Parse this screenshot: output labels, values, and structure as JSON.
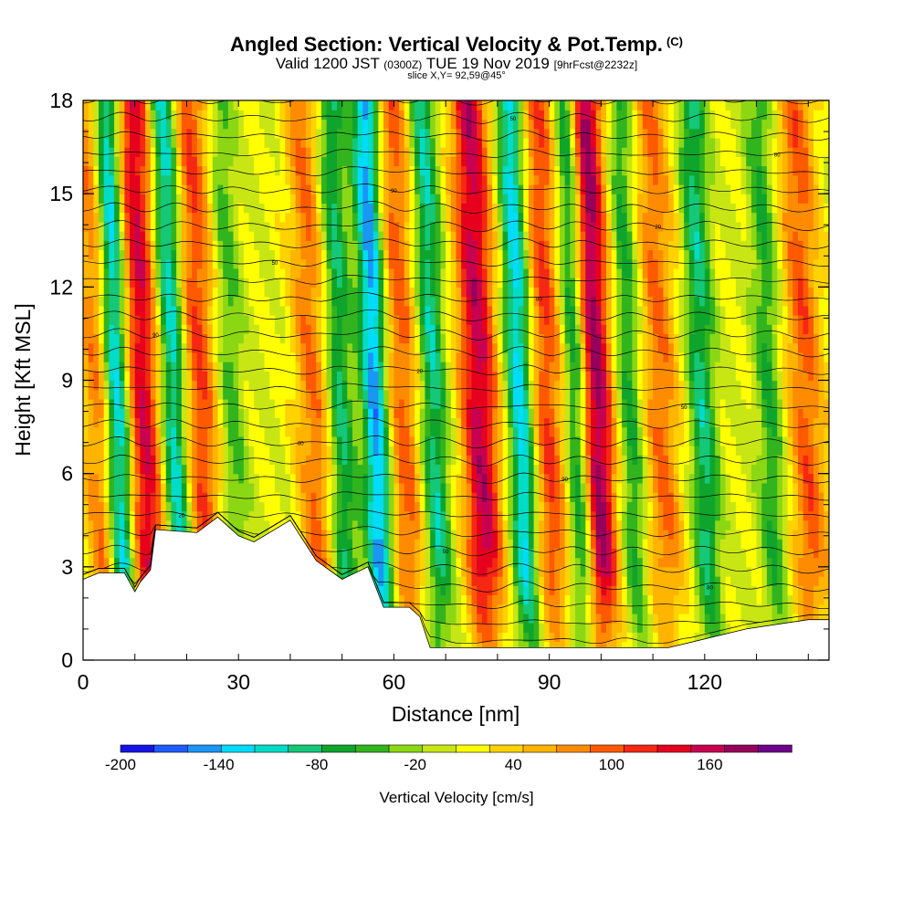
{
  "header": {
    "title": "Angled Section: Vertical Velocity & Pot.Temp.",
    "title_unit": "(C)",
    "valid_prefix": "Valid 1200 JST",
    "valid_utc": "(0300Z)",
    "valid_date": "TUE 19 Nov 2019",
    "forecast": "[9hrFcst@2232z]",
    "slice": "slice X,Y= 92,59@45°"
  },
  "chart_data": {
    "type": "heatmap",
    "title": "Angled Section: Vertical Velocity & Pot.Temp.",
    "xlabel": "Distance [nm]",
    "ylabel": "Height [Kft MSL]",
    "xlim": [
      0,
      144
    ],
    "ylim": [
      0,
      18
    ],
    "xticks": [
      0,
      30,
      60,
      90,
      120
    ],
    "yticks": [
      0,
      3,
      6,
      9,
      12,
      15,
      18
    ],
    "colorbar": {
      "label": "Vertical Velocity [cm/s]",
      "tick_labels": [
        -200,
        -140,
        -80,
        -20,
        40,
        100,
        160
      ],
      "min": -200,
      "max": 190,
      "step": 20,
      "colors": [
        "#1414e6",
        "#1e5cff",
        "#1a96f5",
        "#00dcfa",
        "#00dcc8",
        "#14c878",
        "#0fa52d",
        "#32b41e",
        "#8cd714",
        "#c8e614",
        "#ffff00",
        "#ffd200",
        "#ffb400",
        "#ff8c00",
        "#ff5a00",
        "#f52814",
        "#e6001e",
        "#c80050",
        "#96005a",
        "#6e008c"
      ]
    },
    "updrafts": [
      {
        "x": 4,
        "w": 90
      },
      {
        "x": 12,
        "w": 140
      },
      {
        "x": 23,
        "w": 100
      },
      {
        "x": 45,
        "w": 80
      },
      {
        "x": 62,
        "w": 90
      },
      {
        "x": 77,
        "w": 150
      },
      {
        "x": 90,
        "w": 100
      },
      {
        "x": 99,
        "w": 190
      },
      {
        "x": 112,
        "w": 80
      },
      {
        "x": 140,
        "w": 90
      }
    ],
    "downdrafts": [
      {
        "x": 7,
        "w": -180
      },
      {
        "x": 18,
        "w": -130
      },
      {
        "x": 29,
        "w": -50
      },
      {
        "x": 50,
        "w": -90
      },
      {
        "x": 57,
        "w": -160
      },
      {
        "x": 68,
        "w": -100
      },
      {
        "x": 85,
        "w": -140
      },
      {
        "x": 96,
        "w": -150
      },
      {
        "x": 106,
        "w": -70
      },
      {
        "x": 120,
        "w": -90
      },
      {
        "x": 133,
        "w": -60
      }
    ],
    "terrain_height": [
      [
        0,
        2.6
      ],
      [
        3,
        2.8
      ],
      [
        8,
        2.8
      ],
      [
        10,
        2.2
      ],
      [
        11,
        2.5
      ],
      [
        13,
        2.9
      ],
      [
        14,
        4.2
      ],
      [
        22,
        4.1
      ],
      [
        26,
        4.6
      ],
      [
        30,
        4.0
      ],
      [
        33,
        3.8
      ],
      [
        40,
        4.5
      ],
      [
        45,
        3.2
      ],
      [
        50,
        2.6
      ],
      [
        55,
        3.0
      ],
      [
        58,
        1.7
      ],
      [
        63,
        1.7
      ],
      [
        65,
        1.4
      ],
      [
        67,
        0.4
      ],
      [
        80,
        0.4
      ],
      [
        100,
        0.4
      ],
      [
        113,
        0.4
      ],
      [
        128,
        1.0
      ],
      [
        140,
        1.3
      ],
      [
        144,
        1.3
      ]
    ],
    "contour_labels": [
      "10",
      "90",
      "30",
      "80",
      "70",
      "50",
      "40",
      "20"
    ]
  }
}
